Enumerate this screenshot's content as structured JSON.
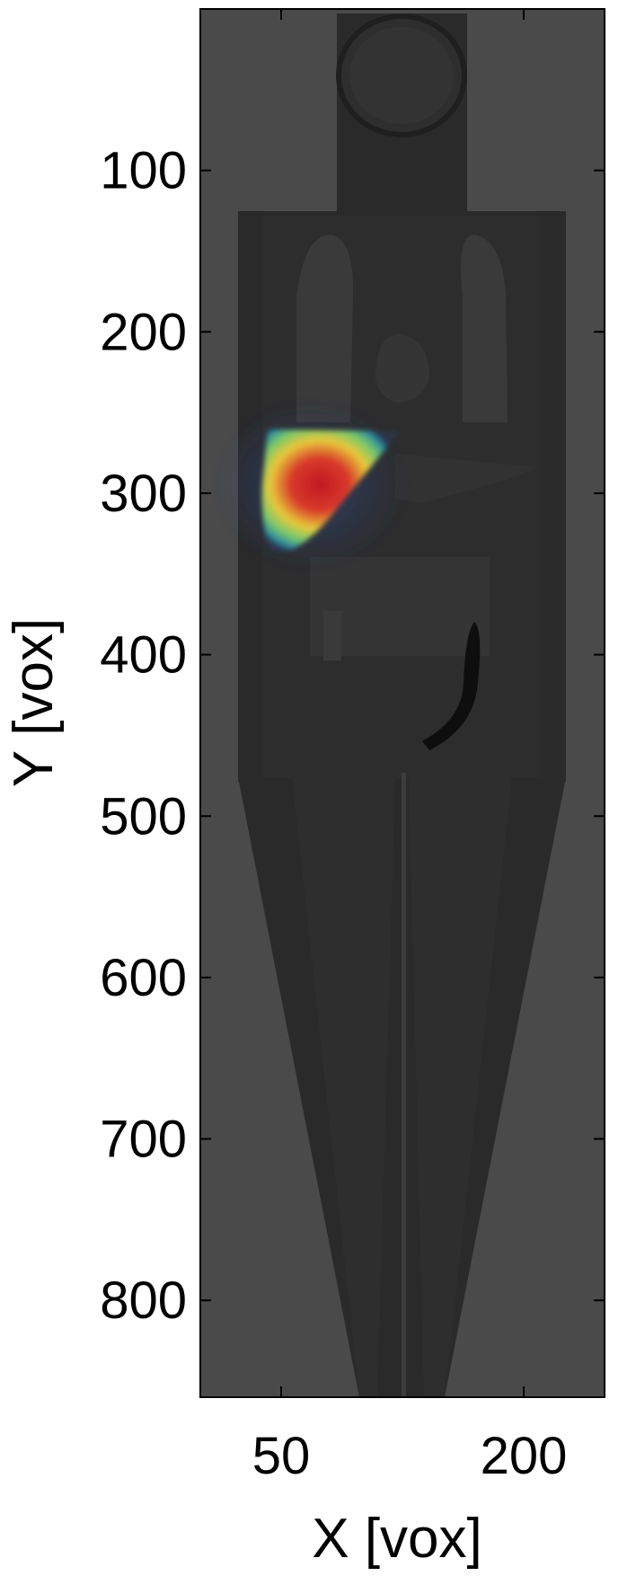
{
  "chart_data": {
    "type": "heatmap",
    "title": "",
    "xlabel": "X [vox]",
    "ylabel": "Y [vox]",
    "xlim": [
      0,
      250
    ],
    "ylim": [
      860,
      0
    ],
    "y_direction": "top-to-bottom",
    "x_ticks": [
      50,
      200
    ],
    "y_ticks": [
      100,
      200,
      300,
      400,
      500,
      600,
      700,
      800
    ],
    "grid": false,
    "legend": "none",
    "colormap": "jet overlay on grayscale anatomy",
    "hotspot": {
      "label": "",
      "peak_x": 75,
      "peak_y": 290,
      "x_range": [
        40,
        125
      ],
      "y_range": [
        260,
        340
      ]
    },
    "colors": {
      "background_gray": "#4a4a4a",
      "body_gray": "#2a2a2a",
      "organ_gray": "#3a3a3a",
      "peak": "#c8282a",
      "mid": "#e8e03a",
      "low": "#3aa8a0"
    }
  }
}
